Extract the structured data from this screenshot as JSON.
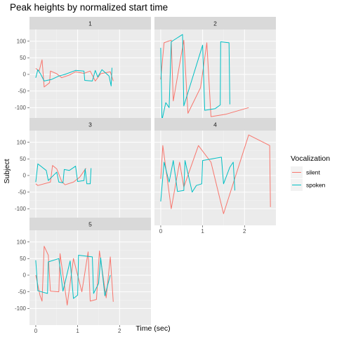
{
  "chart_data": {
    "type": "line",
    "title": "Peak heights by normalized start time",
    "xlabel": "Time (sec)",
    "ylabel": "Subject",
    "xlim": [
      -0.15,
      2.75
    ],
    "ylim": [
      -150,
      135
    ],
    "xticks": [
      0,
      1,
      2
    ],
    "yticks": [
      100,
      50,
      0,
      -50,
      -100
    ],
    "grid": true,
    "facet_layout": "3 rows x 2 columns",
    "legend": {
      "title": "Vocalization",
      "position": "right",
      "entries": [
        {
          "name": "silent",
          "color": "#F8766D"
        },
        {
          "name": "spoken",
          "color": "#00BFC4"
        }
      ]
    },
    "panels": [
      {
        "label": "1",
        "series": [
          {
            "name": "silent",
            "points": [
              [
                0.0,
                18
              ],
              [
                0.08,
                10
              ],
              [
                0.15,
                44
              ],
              [
                0.2,
                -38
              ],
              [
                0.33,
                -25
              ],
              [
                0.35,
                10
              ],
              [
                0.5,
                2
              ],
              [
                0.62,
                -10
              ],
              [
                0.8,
                -2
              ],
              [
                0.95,
                8
              ],
              [
                1.15,
                3
              ],
              [
                1.3,
                10
              ],
              [
                1.42,
                -20
              ],
              [
                1.55,
                2
              ],
              [
                1.78,
                8
              ],
              [
                1.85,
                -20
              ]
            ]
          },
          {
            "name": "spoken",
            "points": [
              [
                0.0,
                -10
              ],
              [
                0.05,
                14
              ],
              [
                0.12,
                0
              ],
              [
                0.2,
                -20
              ],
              [
                0.38,
                -15
              ],
              [
                0.55,
                -5
              ],
              [
                0.7,
                0
              ],
              [
                0.95,
                12
              ],
              [
                1.15,
                10
              ],
              [
                1.17,
                -18
              ],
              [
                1.35,
                -20
              ],
              [
                1.42,
                12
              ],
              [
                1.48,
                -8
              ],
              [
                1.58,
                14
              ],
              [
                1.75,
                -5
              ],
              [
                1.8,
                -35
              ],
              [
                1.82,
                20
              ]
            ]
          }
        ]
      },
      {
        "label": "2",
        "series": [
          {
            "name": "silent",
            "points": [
              [
                0.0,
                -15
              ],
              [
                0.08,
                95
              ],
              [
                0.25,
                103
              ],
              [
                0.3,
                -80
              ],
              [
                0.55,
                103
              ],
              [
                0.65,
                -117
              ],
              [
                0.95,
                -40
              ],
              [
                1.1,
                95
              ],
              [
                1.2,
                -127
              ],
              [
                1.55,
                -120
              ],
              [
                2.1,
                -100
              ]
            ]
          },
          {
            "name": "spoken",
            "points": [
              [
                0.0,
                80
              ],
              [
                0.03,
                -138
              ],
              [
                0.12,
                -85
              ],
              [
                0.2,
                -100
              ],
              [
                0.25,
                98
              ],
              [
                0.52,
                120
              ],
              [
                0.55,
                -95
              ],
              [
                1.0,
                88
              ],
              [
                1.05,
                -108
              ],
              [
                1.3,
                -103
              ],
              [
                1.42,
                -92
              ],
              [
                1.43,
                98
              ],
              [
                1.63,
                95
              ],
              [
                1.65,
                -90
              ]
            ]
          }
        ]
      },
      {
        "label": "3",
        "series": [
          {
            "name": "silent",
            "points": [
              [
                0.0,
                -25
              ],
              [
                0.05,
                -30
              ],
              [
                0.35,
                -20
              ],
              [
                0.4,
                30
              ],
              [
                0.5,
                20
              ],
              [
                0.62,
                -18
              ],
              [
                0.7,
                -28
              ],
              [
                0.9,
                -20
              ],
              [
                1.05,
                -5
              ],
              [
                1.2,
                22
              ]
            ]
          },
          {
            "name": "spoken",
            "points": [
              [
                0.0,
                -20
              ],
              [
                0.05,
                35
              ],
              [
                0.25,
                15
              ],
              [
                0.3,
                -15
              ],
              [
                0.5,
                10
              ],
              [
                0.55,
                -20
              ],
              [
                0.65,
                -22
              ],
              [
                0.68,
                18
              ],
              [
                0.8,
                15
              ],
              [
                0.95,
                28
              ],
              [
                1.0,
                -18
              ],
              [
                1.15,
                -15
              ],
              [
                1.18,
                20
              ],
              [
                1.22,
                -25
              ],
              [
                1.3,
                -25
              ],
              [
                1.32,
                22
              ]
            ]
          }
        ]
      },
      {
        "label": "4",
        "series": [
          {
            "name": "silent",
            "points": [
              [
                0.0,
                -10
              ],
              [
                0.05,
                90
              ],
              [
                0.25,
                -100
              ],
              [
                0.45,
                40
              ],
              [
                0.55,
                -35
              ],
              [
                0.9,
                90
              ],
              [
                1.2,
                40
              ],
              [
                1.5,
                -115
              ],
              [
                2.1,
                122
              ],
              [
                2.6,
                90
              ],
              [
                2.62,
                -95
              ]
            ]
          },
          {
            "name": "spoken",
            "points": [
              [
                0.0,
                -78
              ],
              [
                0.08,
                40
              ],
              [
                0.2,
                -20
              ],
              [
                0.3,
                45
              ],
              [
                0.4,
                -48
              ],
              [
                0.55,
                -45
              ],
              [
                0.58,
                45
              ],
              [
                0.75,
                -50
              ],
              [
                0.85,
                -30
              ],
              [
                0.98,
                -25
              ],
              [
                1.0,
                45
              ],
              [
                1.45,
                55
              ],
              [
                1.5,
                -25
              ],
              [
                1.65,
                25
              ],
              [
                1.73,
                40
              ],
              [
                1.77,
                -45
              ]
            ]
          }
        ]
      },
      {
        "label": "5",
        "series": [
          {
            "name": "silent",
            "points": [
              [
                0.0,
                0
              ],
              [
                0.1,
                -60
              ],
              [
                0.15,
                -78
              ],
              [
                0.2,
                87
              ],
              [
                0.3,
                60
              ],
              [
                0.35,
                -48
              ],
              [
                0.55,
                -50
              ],
              [
                0.58,
                65
              ],
              [
                0.75,
                -90
              ],
              [
                0.9,
                50
              ],
              [
                1.1,
                -50
              ],
              [
                1.25,
                70
              ],
              [
                1.3,
                -78
              ],
              [
                1.45,
                -73
              ],
              [
                1.52,
                73
              ],
              [
                1.68,
                -68
              ],
              [
                1.78,
                55
              ],
              [
                1.85,
                -80
              ]
            ]
          },
          {
            "name": "spoken",
            "points": [
              [
                0.0,
                45
              ],
              [
                0.05,
                -47
              ],
              [
                0.28,
                -55
              ],
              [
                0.3,
                40
              ],
              [
                0.55,
                50
              ],
              [
                0.65,
                -48
              ],
              [
                0.82,
                43
              ],
              [
                0.9,
                -70
              ],
              [
                1.0,
                -60
              ],
              [
                1.02,
                60
              ],
              [
                1.35,
                55
              ],
              [
                1.38,
                -55
              ],
              [
                1.5,
                -25
              ],
              [
                1.55,
                52
              ],
              [
                1.65,
                -62
              ],
              [
                1.78,
                0
              ]
            ]
          }
        ]
      }
    ]
  }
}
